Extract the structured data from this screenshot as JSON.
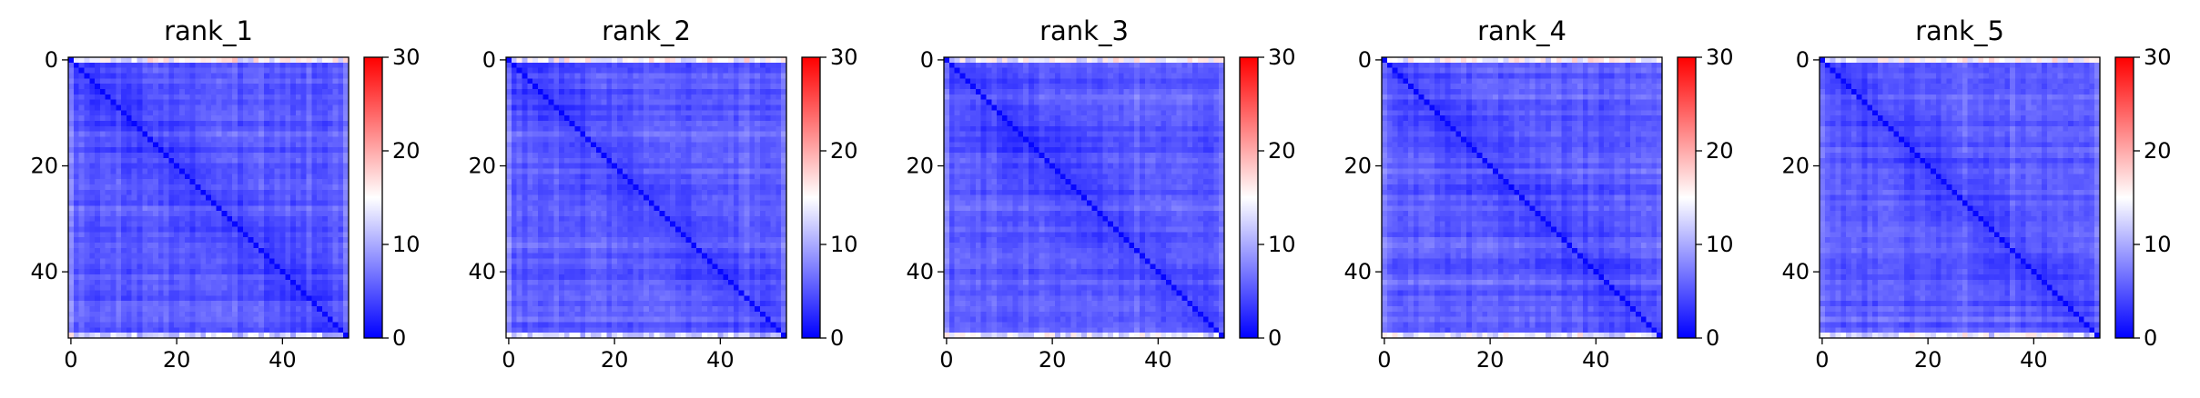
{
  "colors": {
    "colormap": [
      "#0000ff",
      "#ffffff",
      "#ff0000"
    ],
    "axes": "#000000",
    "background": "#ffffff"
  },
  "chart_data": [
    {
      "type": "heatmap",
      "title": "rank_1",
      "size": 53,
      "xlim": [
        0,
        52
      ],
      "ylim": [
        52,
        0
      ],
      "xticks": [
        0,
        20,
        40
      ],
      "yticks": [
        0,
        20,
        40
      ],
      "colorbar": {
        "ticks": [
          0,
          10,
          20,
          30
        ],
        "vmin": 0,
        "vmax": 30
      }
    },
    {
      "type": "heatmap",
      "title": "rank_2",
      "size": 53,
      "xlim": [
        0,
        52
      ],
      "ylim": [
        52,
        0
      ],
      "xticks": [
        0,
        20,
        40
      ],
      "yticks": [
        0,
        20,
        40
      ],
      "colorbar": {
        "ticks": [
          0,
          10,
          20,
          30
        ],
        "vmin": 0,
        "vmax": 30
      }
    },
    {
      "type": "heatmap",
      "title": "rank_3",
      "size": 53,
      "xlim": [
        0,
        52
      ],
      "ylim": [
        52,
        0
      ],
      "xticks": [
        0,
        20,
        40
      ],
      "yticks": [
        0,
        20,
        40
      ],
      "colorbar": {
        "ticks": [
          0,
          10,
          20,
          30
        ],
        "vmin": 0,
        "vmax": 30
      }
    },
    {
      "type": "heatmap",
      "title": "rank_4",
      "size": 53,
      "xlim": [
        0,
        52
      ],
      "ylim": [
        52,
        0
      ],
      "xticks": [
        0,
        20,
        40
      ],
      "yticks": [
        0,
        20,
        40
      ],
      "colorbar": {
        "ticks": [
          0,
          10,
          20,
          30
        ],
        "vmin": 0,
        "vmax": 30
      }
    },
    {
      "type": "heatmap",
      "title": "rank_5",
      "size": 53,
      "xlim": [
        0,
        52
      ],
      "ylim": [
        52,
        0
      ],
      "xticks": [
        0,
        20,
        40
      ],
      "yticks": [
        0,
        20,
        40
      ],
      "colorbar": {
        "ticks": [
          0,
          10,
          20,
          30
        ],
        "vmin": 0,
        "vmax": 30
      }
    }
  ]
}
